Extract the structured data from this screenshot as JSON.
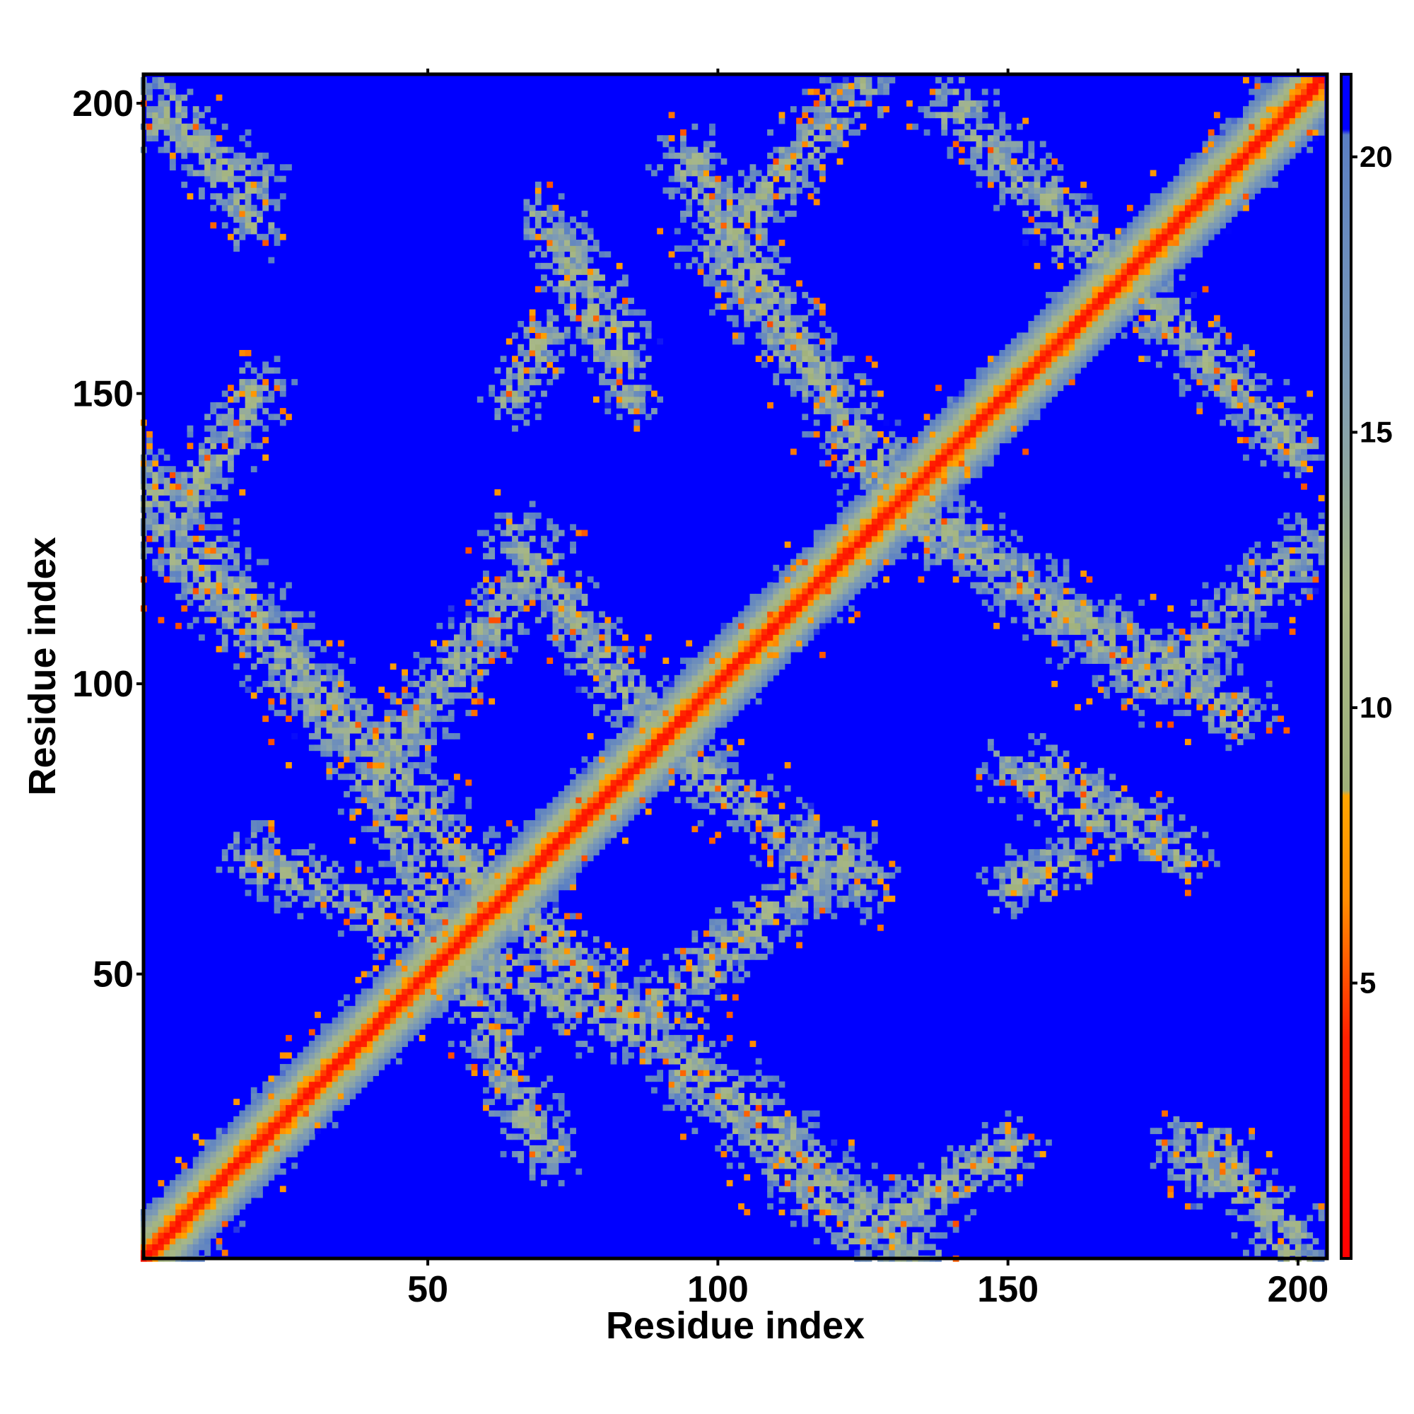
{
  "chart_data": {
    "type": "heatmap",
    "title": "",
    "xlabel": "Residue index",
    "ylabel": "Residue index",
    "n_residues": 204,
    "xlim": [
      1,
      205
    ],
    "ylim": [
      1,
      205
    ],
    "x_ticks": [
      50,
      100,
      150,
      200
    ],
    "y_ticks": [
      50,
      100,
      150,
      200
    ],
    "x_tick_labels": [
      "50",
      "100",
      "150",
      "200"
    ],
    "y_tick_labels": [
      "50",
      "100",
      "150",
      "200"
    ],
    "colorbar": {
      "ticks": [
        5,
        10,
        15,
        20
      ],
      "tick_labels": [
        "5",
        "10",
        "15",
        "20"
      ],
      "range": [
        0,
        21.5
      ],
      "stops": [
        {
          "value": 0,
          "color": "#ff0000"
        },
        {
          "value": 4,
          "color": "#ff2000"
        },
        {
          "value": 6.5,
          "color": "#ff8c00"
        },
        {
          "value": 8.4,
          "color": "#ffa500"
        },
        {
          "value": 8.5,
          "color": "#9fb07a"
        },
        {
          "value": 12,
          "color": "#a8b888"
        },
        {
          "value": 16,
          "color": "#7d9bb5"
        },
        {
          "value": 20.4,
          "color": "#5a7fc4"
        },
        {
          "value": 20.5,
          "color": "#0000ff"
        },
        {
          "value": 21.5,
          "color": "#0000ff"
        }
      ]
    },
    "value_description_note_free": true,
    "background_value": 21,
    "contact_bands": [
      {
        "from": [
          1,
          1
        ],
        "to": [
          204,
          204
        ],
        "width": 6
      },
      {
        "from": [
          1,
          135
        ],
        "to": [
          60,
          66
        ],
        "width": 7
      },
      {
        "from": [
          45,
          90
        ],
        "to": [
          70,
          122
        ],
        "width": 6
      },
      {
        "from": [
          60,
          65
        ],
        "to": [
          125,
          5
        ],
        "width": 7
      },
      {
        "from": [
          20,
          70
        ],
        "to": [
          85,
          40
        ],
        "width": 5
      },
      {
        "from": [
          95,
          190
        ],
        "to": [
          128,
          135
        ],
        "width": 6
      },
      {
        "from": [
          128,
          135
        ],
        "to": [
          175,
          100
        ],
        "width": 7
      },
      {
        "from": [
          140,
          200
        ],
        "to": [
          190,
          150
        ],
        "width": 6
      },
      {
        "from": [
          175,
          100
        ],
        "to": [
          204,
          125
        ],
        "width": 6
      },
      {
        "from": [
          90,
          90
        ],
        "to": [
          125,
          65
        ],
        "width": 6
      },
      {
        "from": [
          1,
          200
        ],
        "to": [
          20,
          185
        ],
        "width": 5
      },
      {
        "from": [
          125,
          5
        ],
        "to": [
          150,
          20
        ],
        "width": 5
      },
      {
        "from": [
          180,
          20
        ],
        "to": [
          200,
          5
        ],
        "width": 5
      },
      {
        "from": [
          70,
          180
        ],
        "to": [
          85,
          150
        ],
        "width": 4
      },
      {
        "from": [
          65,
          150
        ],
        "to": [
          70,
          160
        ],
        "width": 4
      },
      {
        "from": [
          155,
          85
        ],
        "to": [
          175,
          75
        ],
        "width": 4
      }
    ]
  }
}
